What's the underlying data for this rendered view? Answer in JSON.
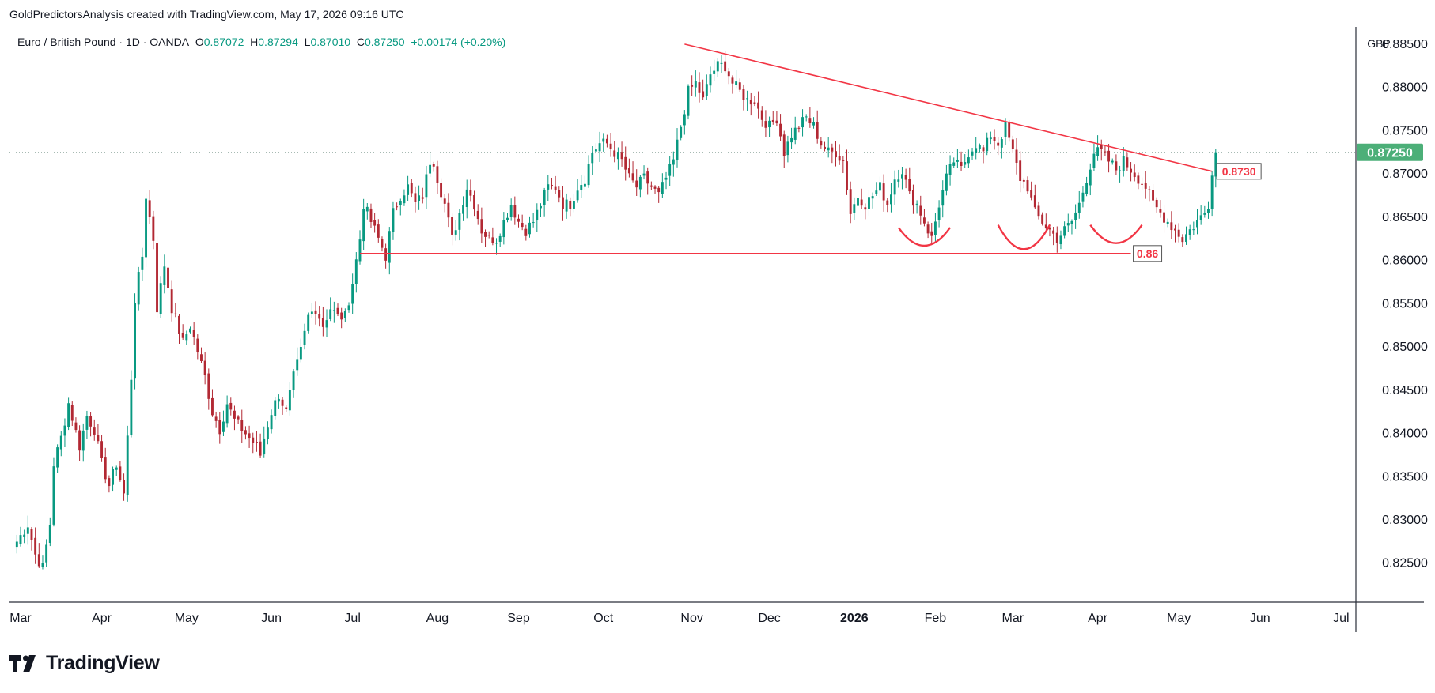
{
  "header": {
    "credit": "GoldPredictorsAnalysis created with TradingView.com, May 17, 2026 09:16 UTC"
  },
  "legend": {
    "symbol": "Euro / British Pound · 1D · OANDA",
    "open_label": "O",
    "open": "0.87072",
    "high_label": "H",
    "high": "0.87294",
    "low_label": "L",
    "low": "0.87010",
    "close_label": "C",
    "close": "0.87250",
    "change": "+0.00174 (+0.20%)"
  },
  "footer": {
    "brand": "TradingView"
  },
  "colors": {
    "up": "#089981",
    "down": "#b22833",
    "annotation": "#f23645",
    "price_tag": "#4caf78"
  },
  "chart_data": {
    "type": "candlestick",
    "currency": "GBP",
    "yticks": [
      "0.88500",
      "0.88000",
      "0.87500",
      "0.87000",
      "0.86500",
      "0.86000",
      "0.85500",
      "0.85000",
      "0.84500",
      "0.84000",
      "0.83500",
      "0.83000",
      "0.82500"
    ],
    "ylim": [
      0.8205,
      0.887
    ],
    "xticks": [
      {
        "label": "Mar",
        "pos": 1
      },
      {
        "label": "Apr",
        "pos": 23
      },
      {
        "label": "May",
        "pos": 46
      },
      {
        "label": "Jun",
        "pos": 69
      },
      {
        "label": "Jul",
        "pos": 91
      },
      {
        "label": "Aug",
        "pos": 114
      },
      {
        "label": "Sep",
        "pos": 136
      },
      {
        "label": "Oct",
        "pos": 159
      },
      {
        "label": "Nov",
        "pos": 183
      },
      {
        "label": "Dec",
        "pos": 204
      },
      {
        "label": "2026",
        "pos": 227,
        "bold": true
      },
      {
        "label": "Feb",
        "pos": 249
      },
      {
        "label": "Mar",
        "pos": 270
      },
      {
        "label": "Apr",
        "pos": 293
      },
      {
        "label": "May",
        "pos": 315
      },
      {
        "label": "Jun",
        "pos": 337
      },
      {
        "label": "Jul",
        "pos": 359
      }
    ],
    "xlim": [
      -2,
      363
    ],
    "last_price": "0.87250",
    "last_price_value": 0.8725,
    "waypoints": [
      [
        0,
        0.8275
      ],
      [
        3,
        0.8295
      ],
      [
        5,
        0.826
      ],
      [
        7,
        0.8245
      ],
      [
        9,
        0.8295
      ],
      [
        10,
        0.8365
      ],
      [
        12,
        0.8395
      ],
      [
        14,
        0.8435
      ],
      [
        17,
        0.8385
      ],
      [
        19,
        0.842
      ],
      [
        21,
        0.8405
      ],
      [
        23,
        0.8365
      ],
      [
        25,
        0.834
      ],
      [
        27,
        0.8365
      ],
      [
        29,
        0.833
      ],
      [
        30,
        0.8395
      ],
      [
        31,
        0.8465
      ],
      [
        32,
        0.8555
      ],
      [
        34,
        0.8605
      ],
      [
        35,
        0.8675
      ],
      [
        37,
        0.8625
      ],
      [
        38,
        0.8545
      ],
      [
        40,
        0.8595
      ],
      [
        42,
        0.8545
      ],
      [
        45,
        0.8505
      ],
      [
        47,
        0.8525
      ],
      [
        49,
        0.8495
      ],
      [
        51,
        0.8465
      ],
      [
        53,
        0.8425
      ],
      [
        55,
        0.8405
      ],
      [
        57,
        0.8435
      ],
      [
        59,
        0.8415
      ],
      [
        61,
        0.8405
      ],
      [
        63,
        0.8395
      ],
      [
        65,
        0.8385
      ],
      [
        66,
        0.8375
      ],
      [
        67,
        0.8395
      ],
      [
        69,
        0.8425
      ],
      [
        71,
        0.8445
      ],
      [
        73,
        0.8425
      ],
      [
        75,
        0.8465
      ],
      [
        77,
        0.8495
      ],
      [
        79,
        0.8535
      ],
      [
        81,
        0.8545
      ],
      [
        83,
        0.8525
      ],
      [
        85,
        0.8545
      ],
      [
        87,
        0.8535
      ],
      [
        89,
        0.8535
      ],
      [
        91,
        0.8575
      ],
      [
        93,
        0.8625
      ],
      [
        94,
        0.8665
      ],
      [
        96,
        0.8645
      ],
      [
        98,
        0.8625
      ],
      [
        100,
        0.8605
      ],
      [
        102,
        0.8655
      ],
      [
        104,
        0.8675
      ],
      [
        106,
        0.8685
      ],
      [
        108,
        0.8665
      ],
      [
        110,
        0.8675
      ],
      [
        112,
        0.8715
      ],
      [
        113,
        0.8715
      ],
      [
        114,
        0.8695
      ],
      [
        116,
        0.8665
      ],
      [
        118,
        0.8625
      ],
      [
        120,
        0.8655
      ],
      [
        122,
        0.8685
      ],
      [
        124,
        0.8665
      ],
      [
        126,
        0.8635
      ],
      [
        128,
        0.8625
      ],
      [
        130,
        0.8625
      ],
      [
        132,
        0.8645
      ],
      [
        134,
        0.8665
      ],
      [
        136,
        0.8645
      ],
      [
        138,
        0.8635
      ],
      [
        140,
        0.8645
      ],
      [
        142,
        0.8665
      ],
      [
        144,
        0.8685
      ],
      [
        146,
        0.8685
      ],
      [
        148,
        0.8665
      ],
      [
        150,
        0.8665
      ],
      [
        152,
        0.8685
      ],
      [
        154,
        0.8695
      ],
      [
        156,
        0.8725
      ],
      [
        158,
        0.8735
      ],
      [
        160,
        0.8735
      ],
      [
        162,
        0.8725
      ],
      [
        164,
        0.8715
      ],
      [
        166,
        0.8695
      ],
      [
        168,
        0.8685
      ],
      [
        170,
        0.8695
      ],
      [
        172,
        0.8685
      ],
      [
        174,
        0.8675
      ],
      [
        176,
        0.8695
      ],
      [
        178,
        0.8715
      ],
      [
        180,
        0.8755
      ],
      [
        182,
        0.8795
      ],
      [
        184,
        0.8805
      ],
      [
        186,
        0.8785
      ],
      [
        188,
        0.8815
      ],
      [
        190,
        0.8825
      ],
      [
        192,
        0.8825
      ],
      [
        194,
        0.8805
      ],
      [
        196,
        0.8795
      ],
      [
        198,
        0.8785
      ],
      [
        200,
        0.8785
      ],
      [
        202,
        0.8765
      ],
      [
        204,
        0.8755
      ],
      [
        206,
        0.8765
      ],
      [
        208,
        0.8725
      ],
      [
        210,
        0.8745
      ],
      [
        212,
        0.8755
      ],
      [
        214,
        0.8765
      ],
      [
        216,
        0.8755
      ],
      [
        218,
        0.8735
      ],
      [
        220,
        0.8725
      ],
      [
        222,
        0.8725
      ],
      [
        224,
        0.8715
      ],
      [
        226,
        0.8655
      ],
      [
        228,
        0.8675
      ],
      [
        230,
        0.8665
      ],
      [
        232,
        0.8675
      ],
      [
        234,
        0.8685
      ],
      [
        236,
        0.8665
      ],
      [
        238,
        0.8695
      ],
      [
        240,
        0.8705
      ],
      [
        242,
        0.8675
      ],
      [
        244,
        0.8665
      ],
      [
        246,
        0.8645
      ],
      [
        248,
        0.8625
      ],
      [
        250,
        0.8665
      ],
      [
        252,
        0.8695
      ],
      [
        254,
        0.8715
      ],
      [
        256,
        0.8705
      ],
      [
        258,
        0.8725
      ],
      [
        260,
        0.8735
      ],
      [
        262,
        0.8725
      ],
      [
        264,
        0.8745
      ],
      [
        266,
        0.8735
      ],
      [
        268,
        0.8755
      ],
      [
        270,
        0.8725
      ],
      [
        272,
        0.8695
      ],
      [
        274,
        0.8685
      ],
      [
        276,
        0.8655
      ],
      [
        278,
        0.8645
      ],
      [
        280,
        0.8635
      ],
      [
        282,
        0.8625
      ],
      [
        284,
        0.8635
      ],
      [
        286,
        0.8645
      ],
      [
        288,
        0.8665
      ],
      [
        290,
        0.8695
      ],
      [
        292,
        0.8725
      ],
      [
        294,
        0.8725
      ],
      [
        296,
        0.8715
      ],
      [
        298,
        0.8705
      ],
      [
        300,
        0.8715
      ],
      [
        302,
        0.8705
      ],
      [
        304,
        0.8695
      ],
      [
        306,
        0.8685
      ],
      [
        308,
        0.8665
      ],
      [
        310,
        0.8655
      ],
      [
        312,
        0.8645
      ],
      [
        314,
        0.8635
      ],
      [
        316,
        0.8625
      ],
      [
        318,
        0.8635
      ],
      [
        320,
        0.8645
      ],
      [
        322,
        0.8655
      ],
      [
        323,
        0.8665
      ],
      [
        324,
        0.8705
      ],
      [
        325,
        0.8725
      ]
    ],
    "annotations": {
      "horizontal_level": {
        "value": 0.8608,
        "start": 93,
        "end": 302,
        "label": "0.86"
      },
      "trendline": {
        "from": [
          181,
          0.885
        ],
        "to": [
          324,
          0.8703
        ],
        "label": "0.8730"
      },
      "arcs": [
        {
          "center": 246,
          "half_width": 7,
          "top": 0.8638,
          "bottom": 0.8617
        },
        {
          "center": 273,
          "half_width": 7,
          "top": 0.8641,
          "bottom": 0.8613
        },
        {
          "center": 298,
          "half_width": 7,
          "top": 0.8641,
          "bottom": 0.862
        }
      ]
    }
  }
}
